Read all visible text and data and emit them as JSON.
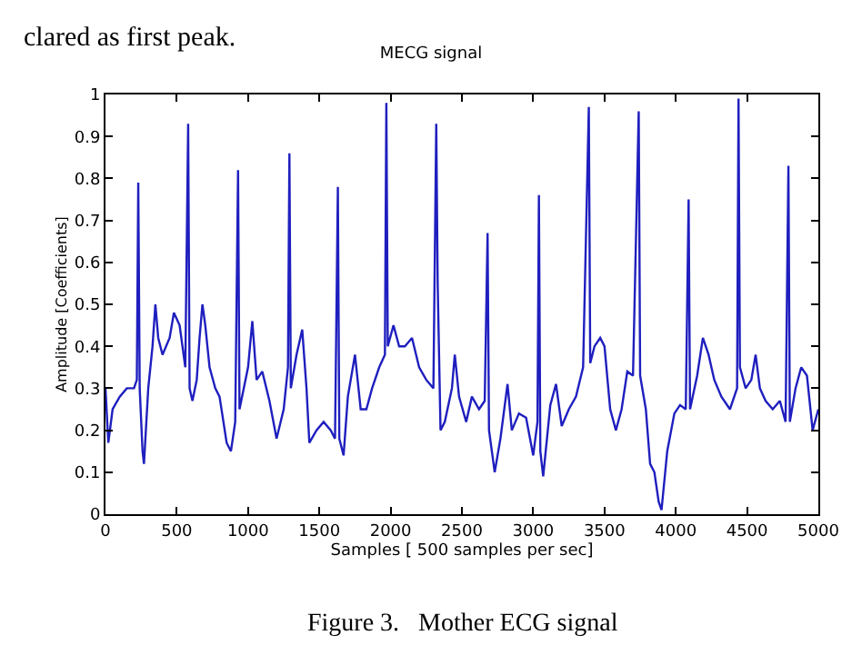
{
  "chart_data": {
    "type": "line",
    "title": "MECG signal",
    "xlabel": "Samples [ 500 samples per sec]",
    "ylabel": "Amplitude [Coefficients]",
    "annotations": [
      "clared as first peak.",
      "Figure 3.   Mother ECG signal"
    ],
    "xlim": [
      0,
      5000
    ],
    "xticks": [
      0,
      500,
      1000,
      1500,
      2000,
      2500,
      3000,
      3500,
      4000,
      4500,
      5000
    ],
    "ylim": [
      0,
      1
    ],
    "yticks": [
      0,
      0.1,
      0.2,
      0.3,
      0.4,
      0.5,
      0.6,
      0.7,
      0.8,
      0.9,
      1
    ],
    "marker": "none",
    "line_style": "solid",
    "series": [
      {
        "color": "#1f1fbf",
        "x": [
          0,
          20,
          50,
          100,
          150,
          200,
          220,
          230,
          240,
          260,
          270,
          300,
          330,
          350,
          370,
          400,
          450,
          480,
          520,
          560,
          580,
          590,
          610,
          640,
          660,
          680,
          700,
          730,
          770,
          800,
          850,
          880,
          910,
          930,
          940,
          970,
          1000,
          1030,
          1060,
          1100,
          1150,
          1200,
          1250,
          1280,
          1290,
          1300,
          1340,
          1380,
          1410,
          1430,
          1480,
          1530,
          1580,
          1610,
          1630,
          1640,
          1670,
          1700,
          1750,
          1790,
          1830,
          1870,
          1920,
          1960,
          1970,
          1980,
          2020,
          2060,
          2100,
          2150,
          2200,
          2250,
          2300,
          2320,
          2330,
          2350,
          2380,
          2430,
          2450,
          2480,
          2530,
          2570,
          2620,
          2660,
          2680,
          2690,
          2730,
          2770,
          2820,
          2850,
          2900,
          2950,
          3000,
          3030,
          3040,
          3050,
          3070,
          3120,
          3160,
          3200,
          3250,
          3300,
          3350,
          3390,
          3400,
          3430,
          3470,
          3500,
          3540,
          3580,
          3620,
          3660,
          3700,
          3740,
          3750,
          3790,
          3820,
          3850,
          3880,
          3900,
          3940,
          3990,
          4030,
          4070,
          4090,
          4100,
          4150,
          4190,
          4230,
          4270,
          4320,
          4380,
          4430,
          4440,
          4450,
          4490,
          4530,
          4560,
          4590,
          4630,
          4680,
          4730,
          4770,
          4790,
          4800,
          4840,
          4880,
          4920,
          4960,
          5000
        ],
        "values": [
          0.3,
          0.17,
          0.25,
          0.28,
          0.3,
          0.3,
          0.32,
          0.79,
          0.3,
          0.15,
          0.12,
          0.3,
          0.4,
          0.5,
          0.42,
          0.38,
          0.42,
          0.48,
          0.45,
          0.35,
          0.93,
          0.3,
          0.27,
          0.32,
          0.42,
          0.5,
          0.45,
          0.35,
          0.3,
          0.28,
          0.17,
          0.15,
          0.22,
          0.82,
          0.25,
          0.3,
          0.35,
          0.46,
          0.32,
          0.34,
          0.27,
          0.18,
          0.25,
          0.35,
          0.86,
          0.3,
          0.38,
          0.44,
          0.3,
          0.17,
          0.2,
          0.22,
          0.2,
          0.18,
          0.78,
          0.18,
          0.14,
          0.28,
          0.38,
          0.25,
          0.25,
          0.3,
          0.35,
          0.38,
          0.98,
          0.4,
          0.45,
          0.4,
          0.4,
          0.42,
          0.35,
          0.32,
          0.3,
          0.93,
          0.55,
          0.2,
          0.22,
          0.3,
          0.38,
          0.28,
          0.22,
          0.28,
          0.25,
          0.27,
          0.67,
          0.2,
          0.1,
          0.18,
          0.31,
          0.2,
          0.24,
          0.23,
          0.14,
          0.22,
          0.76,
          0.15,
          0.09,
          0.26,
          0.31,
          0.21,
          0.25,
          0.28,
          0.35,
          0.97,
          0.36,
          0.4,
          0.42,
          0.4,
          0.25,
          0.2,
          0.25,
          0.34,
          0.33,
          0.96,
          0.33,
          0.25,
          0.12,
          0.1,
          0.03,
          0.01,
          0.15,
          0.24,
          0.26,
          0.25,
          0.75,
          0.25,
          0.33,
          0.42,
          0.38,
          0.32,
          0.28,
          0.25,
          0.3,
          0.99,
          0.35,
          0.3,
          0.32,
          0.38,
          0.3,
          0.27,
          0.25,
          0.27,
          0.22,
          0.83,
          0.22,
          0.3,
          0.35,
          0.33,
          0.2,
          0.25
        ]
      }
    ]
  }
}
